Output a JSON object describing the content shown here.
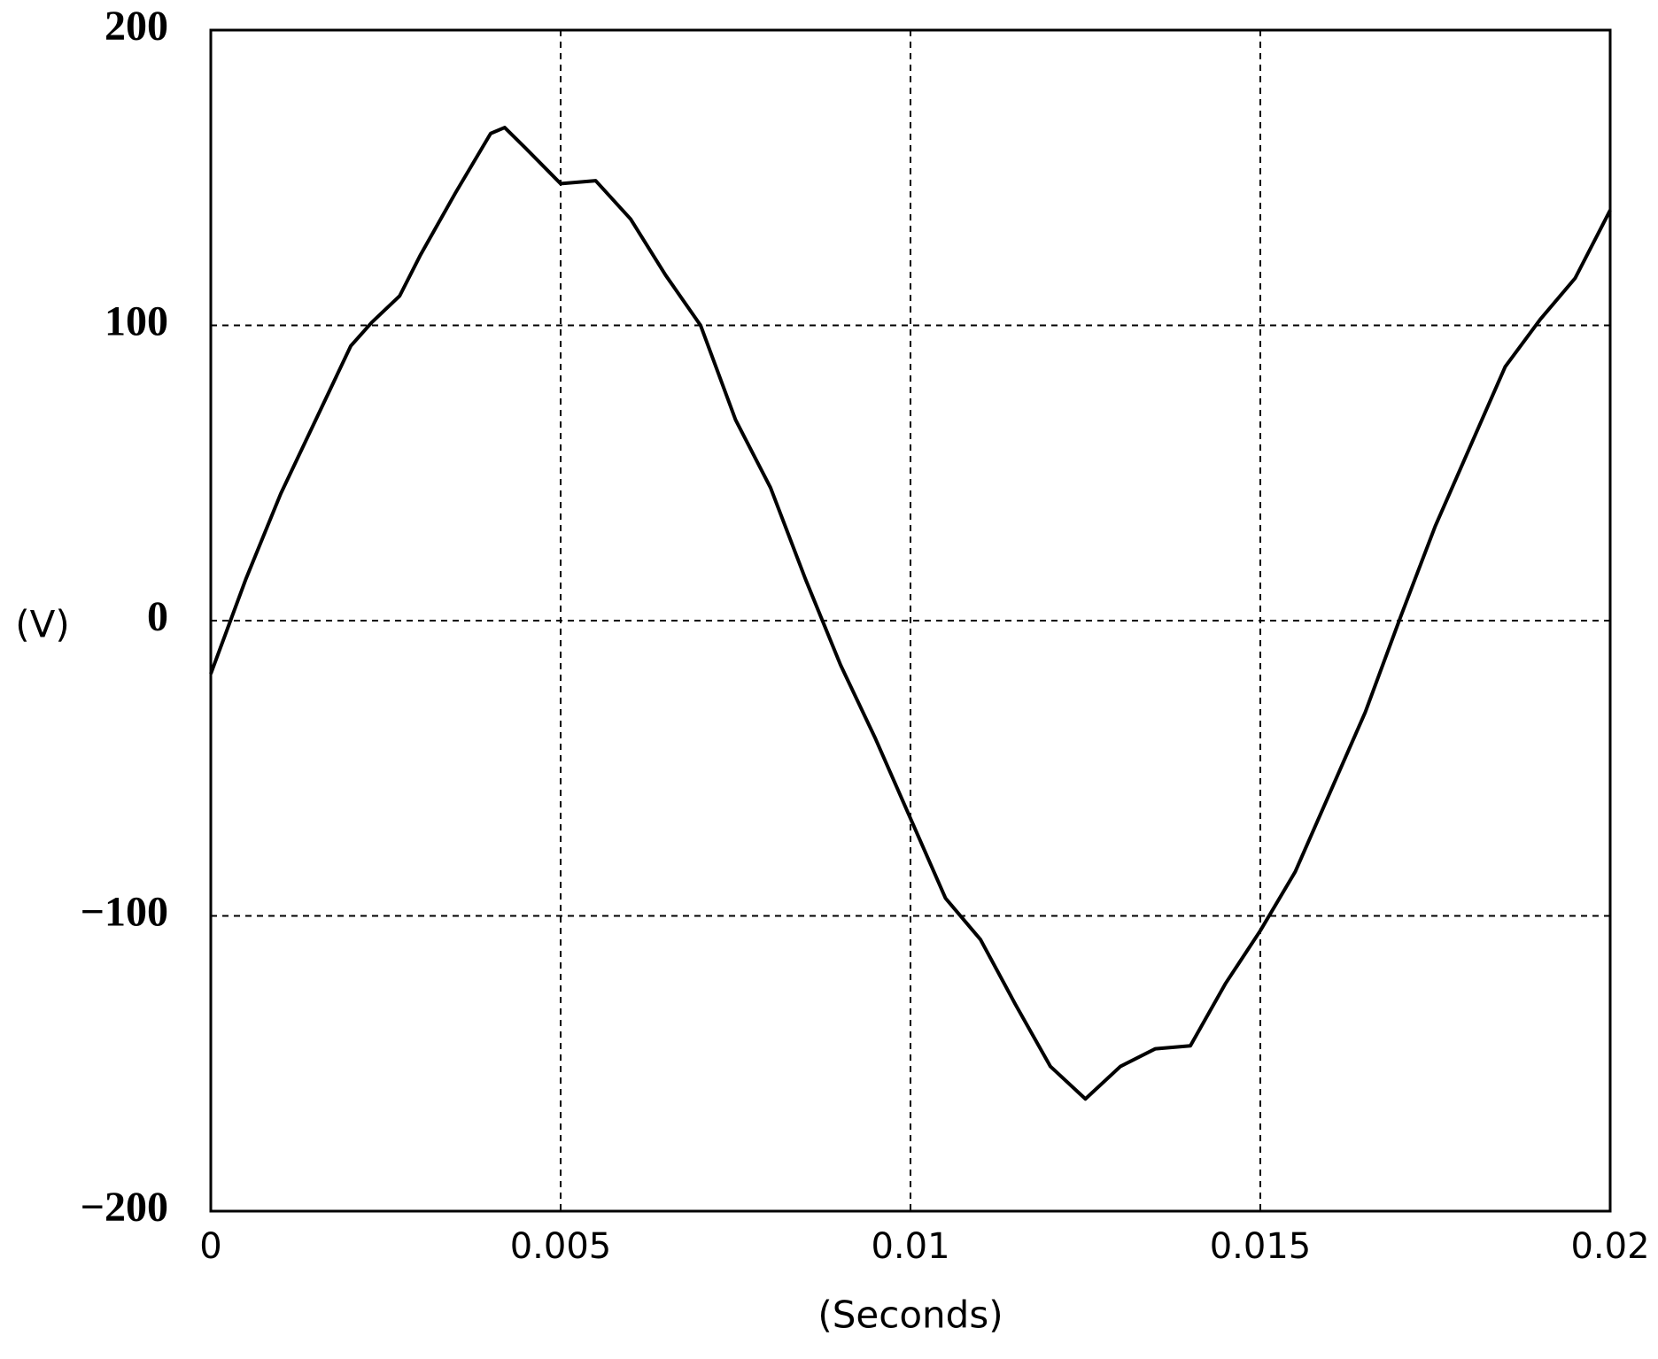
{
  "chart_data": {
    "type": "line",
    "x_label": "(Seconds)",
    "y_label": "(V)",
    "xlim": [
      0,
      0.02
    ],
    "ylim": [
      -200,
      200
    ],
    "xticks": [
      0,
      0.005,
      0.01,
      0.015,
      0.02
    ],
    "yticks": [
      200,
      100,
      0,
      {
        "value": -100,
        "label": "−100"
      },
      {
        "value": -200,
        "label": "−200"
      }
    ],
    "grid": true,
    "x": [
      0,
      0.0005,
      0.001,
      0.0015,
      0.002,
      0.0023,
      0.0027,
      0.003,
      0.0035,
      0.004,
      0.0042,
      0.0045,
      0.005,
      0.0055,
      0.006,
      0.0065,
      0.007,
      0.0075,
      0.008,
      0.0085,
      0.009,
      0.0095,
      0.01,
      0.0105,
      0.011,
      0.0115,
      0.012,
      0.0125,
      0.013,
      0.0135,
      0.014,
      0.0145,
      0.015,
      0.0155,
      0.016,
      0.0165,
      0.017,
      0.0175,
      0.018,
      0.0185,
      0.019,
      0.0195,
      0.02
    ],
    "series": [
      {
        "color": "#000000",
        "values": [
          -18,
          14,
          43,
          68,
          93,
          101,
          110,
          124,
          145,
          165,
          167,
          160,
          148,
          149,
          136,
          117,
          100,
          68,
          45,
          14,
          -15,
          -40,
          -67,
          -94,
          -108,
          -130,
          -151,
          -162,
          -151,
          -145,
          -144,
          -123,
          -105,
          -85,
          -58,
          -31,
          1,
          32,
          59,
          86,
          102,
          116,
          139
        ]
      }
    ]
  }
}
